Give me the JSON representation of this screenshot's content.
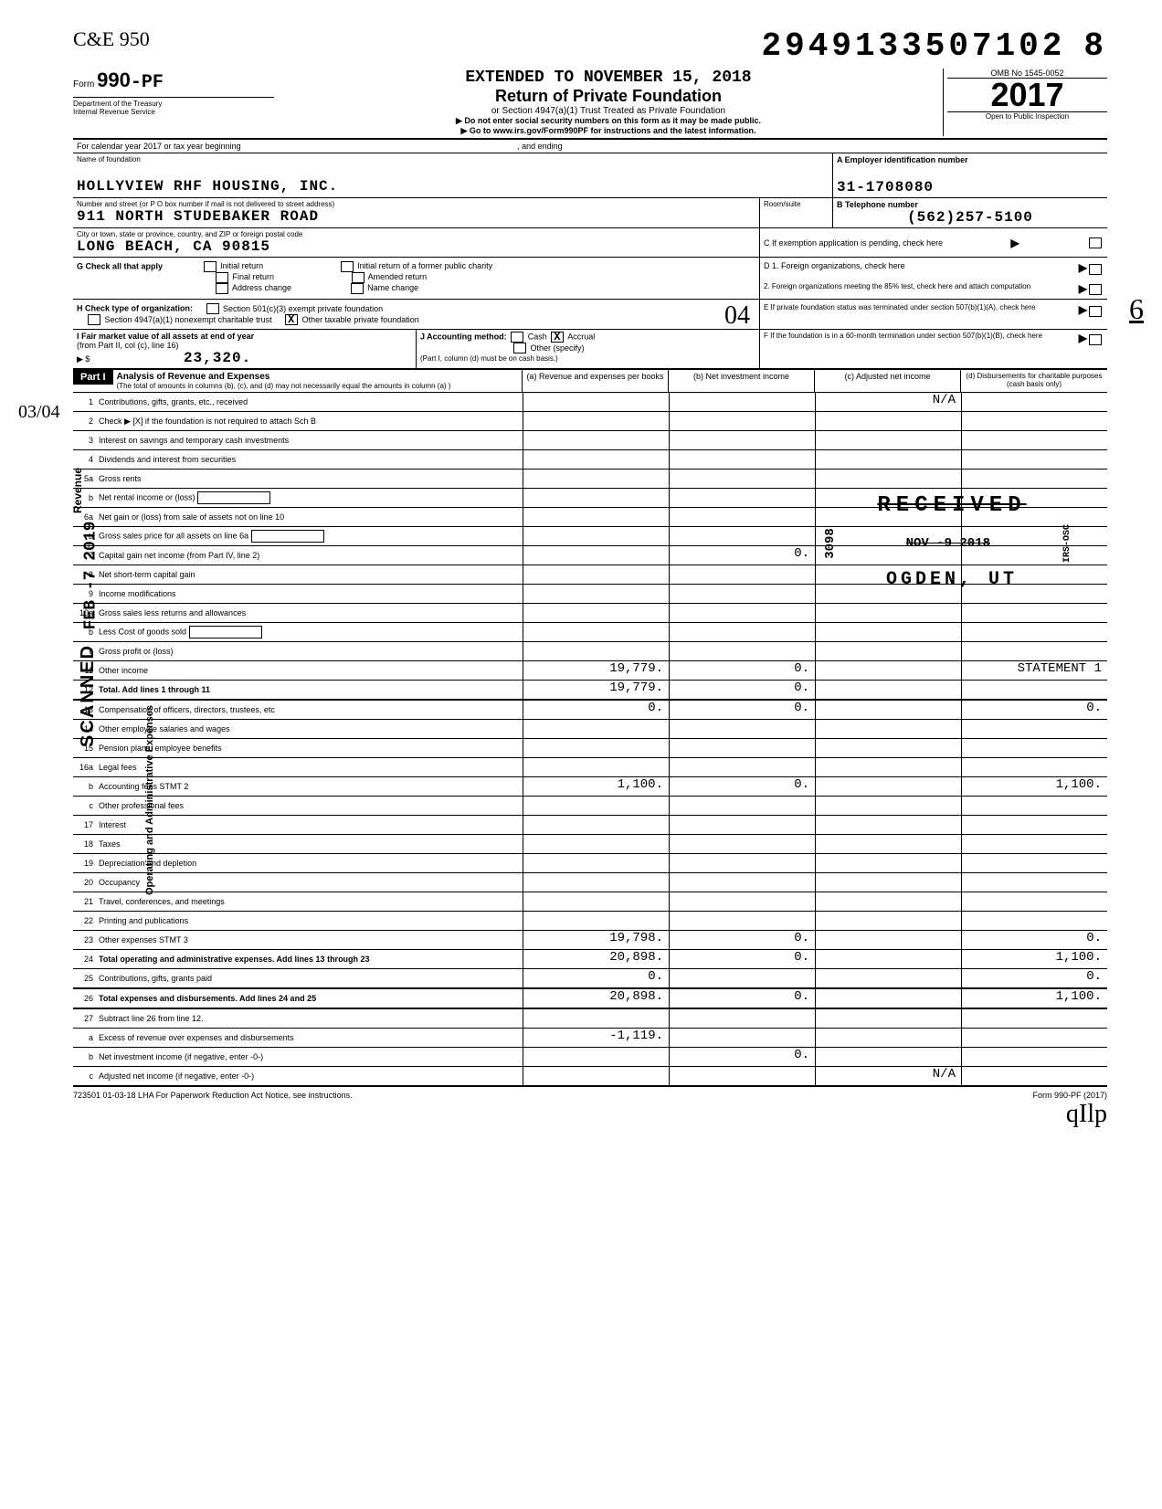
{
  "top": {
    "handwritten": "C&E\n950",
    "dln": "2949133507102",
    "dln_suffix": "8"
  },
  "header": {
    "form_prefix": "Form",
    "form_no": "990",
    "form_suffix": "-PF",
    "dept1": "Department of the Treasury",
    "dept2": "Internal Revenue Service",
    "extended": "EXTENDED TO NOVEMBER 15, 2018",
    "title": "Return of Private Foundation",
    "subtitle": "or Section 4947(a)(1) Trust Treated as Private Foundation",
    "instr1": "▶ Do not enter social security numbers on this form as it may be made public.",
    "instr2": "▶ Go to www.irs.gov/Form990PF for instructions and the latest information.",
    "omb": "OMB No  1545-0052",
    "year": "2017",
    "open": "Open to Public Inspection"
  },
  "cal": {
    "label": "For calendar year 2017 or tax year beginning",
    "ending": ", and ending"
  },
  "name": {
    "label": "Name of foundation",
    "value": "HOLLYVIEW RHF HOUSING, INC.",
    "ein_label": "A Employer identification number",
    "ein": "31-1708080"
  },
  "addr": {
    "label": "Number and street (or P O  box number if mail is not delivered to street address)",
    "value": "911 NORTH STUDEBAKER ROAD",
    "room_label": "Room/suite",
    "tel_label": "B Telephone number",
    "tel": "(562)257-5100"
  },
  "city": {
    "label": "City or town, state or province, country, and ZIP or foreign postal code",
    "value": "LONG BEACH, CA   90815",
    "c_label": "C If exemption application is pending, check here"
  },
  "g": {
    "label": "G  Check all that apply",
    "initial": "Initial return",
    "initial_former": "Initial return of a former public charity",
    "final": "Final return",
    "amended": "Amended return",
    "addr_change": "Address change",
    "name_change": "Name change",
    "d1": "D  1. Foreign organizations, check here",
    "d2": "2. Foreign organizations meeting the 85% test, check here and attach computation"
  },
  "h": {
    "label": "H  Check type of organization:",
    "opt1": "Section 501(c)(3) exempt private foundation",
    "opt2": "Section 4947(a)(1) nonexempt charitable trust",
    "opt3": "Other taxable private foundation",
    "e": "E  If private foundation status was terminated under section 507(b)(1)(A), check here",
    "hand": "04"
  },
  "i": {
    "label": "I  Fair market value of all assets at end of year",
    "from": "(from Part II, col  (c), line 16)",
    "amt_label": "▶ $",
    "amt": "23,320.",
    "j_label": "J  Accounting method:",
    "cash": "Cash",
    "accrual": "Accrual",
    "other": "Other (specify)",
    "note": "(Part I, column (d) must be on cash basis.)",
    "f": "F  If the foundation is in a 60-month termination under section 507(b)(1)(B), check here"
  },
  "part1": {
    "label": "Part I",
    "title": "Analysis of Revenue and Expenses",
    "note": "(The total of amounts in columns (b), (c), and (d) may not necessarily equal the amounts in column (a) )",
    "col_a": "(a) Revenue and expenses per books",
    "col_b": "(b) Net investment income",
    "col_c": "(c) Adjusted net income",
    "col_d": "(d) Disbursements for charitable purposes (cash basis only)"
  },
  "sides": {
    "scanned": "SCANNED",
    "feb": "FEB -7 2019",
    "revenue": "Revenue",
    "expenses": "Operating and Administrative Expenses"
  },
  "rows": [
    {
      "n": "1",
      "d": "Contributions, gifts, grants, etc., received",
      "a": "",
      "b": "",
      "c": "N/A",
      "e": ""
    },
    {
      "n": "2",
      "d": "Check ▶ [X] if the foundation is not required to attach Sch  B",
      "a": "",
      "b": "",
      "c": "",
      "e": ""
    },
    {
      "n": "3",
      "d": "Interest on savings and temporary cash investments",
      "a": "",
      "b": "",
      "c": "",
      "e": ""
    },
    {
      "n": "4",
      "d": "Dividends and interest from securities",
      "a": "",
      "b": "",
      "c": "",
      "e": ""
    },
    {
      "n": "5a",
      "d": "Gross rents",
      "a": "",
      "b": "",
      "c": "",
      "e": ""
    },
    {
      "n": "b",
      "d": "Net rental income or (loss)",
      "a": "",
      "b": "",
      "c": "",
      "e": ""
    },
    {
      "n": "6a",
      "d": "Net gain or (loss) from sale of assets not on line 10",
      "a": "",
      "b": "",
      "c": "",
      "e": ""
    },
    {
      "n": "b",
      "d": "Gross sales price for all assets on line 6a",
      "a": "",
      "b": "",
      "c": "",
      "e": ""
    },
    {
      "n": "7",
      "d": "Capital gain net income (from Part IV, line 2)",
      "a": "",
      "b": "0.",
      "c": "",
      "e": ""
    },
    {
      "n": "8",
      "d": "Net short-term capital gain",
      "a": "",
      "b": "",
      "c": "",
      "e": ""
    },
    {
      "n": "9",
      "d": "Income modifications",
      "a": "",
      "b": "",
      "c": "",
      "e": ""
    },
    {
      "n": "10a",
      "d": "Gross sales less returns and allowances",
      "a": "",
      "b": "",
      "c": "",
      "e": ""
    },
    {
      "n": "b",
      "d": "Less  Cost of goods sold",
      "a": "",
      "b": "",
      "c": "",
      "e": ""
    },
    {
      "n": "c",
      "d": "Gross profit or (loss)",
      "a": "",
      "b": "",
      "c": "",
      "e": ""
    },
    {
      "n": "11",
      "d": "Other income",
      "a": "19,779.",
      "b": "0.",
      "c": "",
      "e": "STATEMENT 1"
    },
    {
      "n": "12",
      "d": "Total. Add lines 1 through 11",
      "a": "19,779.",
      "b": "0.",
      "c": "",
      "e": "",
      "bold": true,
      "heavy": true
    },
    {
      "n": "13",
      "d": "Compensation of officers, directors, trustees, etc",
      "a": "0.",
      "b": "0.",
      "c": "",
      "e": "0."
    },
    {
      "n": "14",
      "d": "Other employee salaries and wages",
      "a": "",
      "b": "",
      "c": "",
      "e": ""
    },
    {
      "n": "15",
      "d": "Pension plans, employee benefits",
      "a": "",
      "b": "",
      "c": "",
      "e": ""
    },
    {
      "n": "16a",
      "d": "Legal fees",
      "a": "",
      "b": "",
      "c": "",
      "e": ""
    },
    {
      "n": "b",
      "d": "Accounting fees              STMT 2",
      "a": "1,100.",
      "b": "0.",
      "c": "",
      "e": "1,100."
    },
    {
      "n": "c",
      "d": "Other professional fees",
      "a": "",
      "b": "",
      "c": "",
      "e": ""
    },
    {
      "n": "17",
      "d": "Interest",
      "a": "",
      "b": "",
      "c": "",
      "e": ""
    },
    {
      "n": "18",
      "d": "Taxes",
      "a": "",
      "b": "",
      "c": "",
      "e": ""
    },
    {
      "n": "19",
      "d": "Depreciation and depletion",
      "a": "",
      "b": "",
      "c": "",
      "e": ""
    },
    {
      "n": "20",
      "d": "Occupancy",
      "a": "",
      "b": "",
      "c": "",
      "e": ""
    },
    {
      "n": "21",
      "d": "Travel, conferences, and meetings",
      "a": "",
      "b": "",
      "c": "",
      "e": ""
    },
    {
      "n": "22",
      "d": "Printing and publications",
      "a": "",
      "b": "",
      "c": "",
      "e": ""
    },
    {
      "n": "23",
      "d": "Other expenses              STMT 3",
      "a": "19,798.",
      "b": "0.",
      "c": "",
      "e": "0."
    },
    {
      "n": "24",
      "d": "Total operating and administrative expenses. Add lines 13 through 23",
      "a": "20,898.",
      "b": "0.",
      "c": "",
      "e": "1,100.",
      "bold": true
    },
    {
      "n": "25",
      "d": "Contributions, gifts, grants paid",
      "a": "0.",
      "b": "",
      "c": "",
      "e": "0.",
      "heavy": true
    },
    {
      "n": "26",
      "d": "Total expenses and disbursements. Add lines 24 and 25",
      "a": "20,898.",
      "b": "0.",
      "c": "",
      "e": "1,100.",
      "bold": true,
      "heavy": true
    },
    {
      "n": "27",
      "d": "Subtract line 26 from line 12.",
      "a": "",
      "b": "",
      "c": "",
      "e": ""
    },
    {
      "n": "a",
      "d": "Excess of revenue over expenses and disbursements",
      "a": "-1,119.",
      "b": "",
      "c": "",
      "e": ""
    },
    {
      "n": "b",
      "d": "Net investment income (if negative, enter -0-)",
      "a": "",
      "b": "0.",
      "c": "",
      "e": ""
    },
    {
      "n": "c",
      "d": "Adjusted net income (if negative, enter -0-)",
      "a": "",
      "b": "",
      "c": "N/A",
      "e": "",
      "heavy": true
    }
  ],
  "stamp": {
    "received": "RECEIVED",
    "date": "NOV -9  2018",
    "num": "3098",
    "ogden": "OGDEN, UT"
  },
  "footer": {
    "left": "723501  01-03-18   LHA   For Paperwork Reduction Act Notice, see instructions.",
    "right": "Form 990-PF (2017)",
    "sig": "qIlp"
  },
  "hand_margin": "6",
  "hand_left": "03/04"
}
